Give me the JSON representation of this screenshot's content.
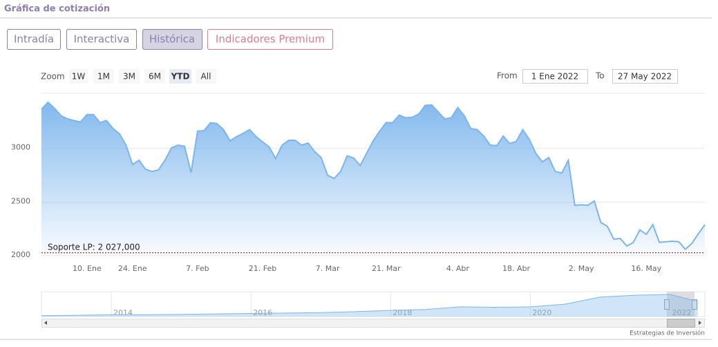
{
  "header": {
    "title": "Gráfica de cotización"
  },
  "tabs": [
    "Intradía",
    "Interactiva",
    "Histórica",
    "Indicadores Premium"
  ],
  "zoom": {
    "label": "Zoom",
    "buttons": [
      "1W",
      "1M",
      "3M",
      "6M",
      "YTD",
      "All"
    ]
  },
  "range": {
    "from_label": "From",
    "from": "1 Ene 2022",
    "to_label": "To",
    "to": "27 May 2022"
  },
  "chart_data": {
    "type": "area",
    "color": "#7cb5ec",
    "grid": true,
    "categories": [
      null,
      null,
      null,
      null,
      null,
      null,
      null,
      "10. Ene",
      null,
      null,
      null,
      null,
      null,
      null,
      "24. Ene",
      null,
      null,
      null,
      null,
      null,
      null,
      null,
      null,
      null,
      "7. Feb",
      null,
      null,
      null,
      null,
      null,
      null,
      null,
      null,
      null,
      "21. Feb",
      null,
      null,
      null,
      null,
      null,
      null,
      null,
      null,
      null,
      "7. Mar",
      null,
      null,
      null,
      null,
      null,
      null,
      null,
      null,
      "21. Mar",
      null,
      null,
      null,
      null,
      null,
      null,
      null,
      null,
      null,
      null,
      "4. Abr",
      null,
      null,
      null,
      null,
      null,
      null,
      null,
      null,
      "18. Abr",
      null,
      null,
      null,
      null,
      null,
      null,
      null,
      null,
      null,
      "2. May",
      null,
      null,
      null,
      null,
      null,
      null,
      null,
      null,
      null,
      "16. May",
      null,
      null,
      null,
      null,
      null,
      null,
      null,
      null,
      null
    ],
    "values": [
      3365,
      3430,
      3375,
      3305,
      3275,
      3260,
      3245,
      3315,
      3315,
      3240,
      3260,
      3185,
      3135,
      3030,
      2850,
      2890,
      2805,
      2785,
      2800,
      2890,
      3005,
      3030,
      3020,
      2775,
      3160,
      3165,
      3240,
      3230,
      3175,
      3070,
      3110,
      3140,
      3175,
      3110,
      3060,
      3015,
      2905,
      3030,
      3075,
      3075,
      3030,
      3050,
      2970,
      2915,
      2750,
      2720,
      2785,
      2930,
      2910,
      2840,
      2955,
      3070,
      3160,
      3240,
      3240,
      3310,
      3285,
      3290,
      3320,
      3400,
      3405,
      3340,
      3275,
      3285,
      3380,
      3305,
      3185,
      3175,
      3115,
      3030,
      3025,
      3115,
      3045,
      3065,
      3175,
      3085,
      2955,
      2875,
      2915,
      2785,
      2770,
      2890,
      2470,
      2475,
      2470,
      2510,
      2310,
      2275,
      2155,
      2160,
      2090,
      2125,
      2240,
      2200,
      2290,
      2125,
      2130,
      2135,
      2130,
      2060,
      2115,
      2205,
      2290
    ],
    "ylim": [
      2000,
      3500
    ],
    "yticks": [
      2000,
      2500,
      3000
    ],
    "annotations": [
      {
        "text": "Soporte LP: 2 027,000",
        "value": 2027
      }
    ]
  },
  "navigator": {
    "x": [
      2013,
      2013.5,
      2014,
      2014.5,
      2015,
      2015.5,
      2016,
      2016.5,
      2017,
      2017.5,
      2018,
      2018.5,
      2019,
      2019.5,
      2020,
      2020.5,
      2021,
      2021.5,
      2022,
      2022.4
    ],
    "values": [
      900,
      950,
      1000,
      1020,
      1050,
      1100,
      1150,
      1200,
      1250,
      1350,
      1500,
      1600,
      1900,
      1850,
      1900,
      2200,
      3000,
      3200,
      3300,
      2500
    ],
    "xlim": [
      2013,
      2022.5
    ],
    "ylim": [
      800,
      3600
    ],
    "xticks": [
      2014,
      2016,
      2018,
      2020,
      2022
    ]
  },
  "credit": "Estrategias de Inversión"
}
